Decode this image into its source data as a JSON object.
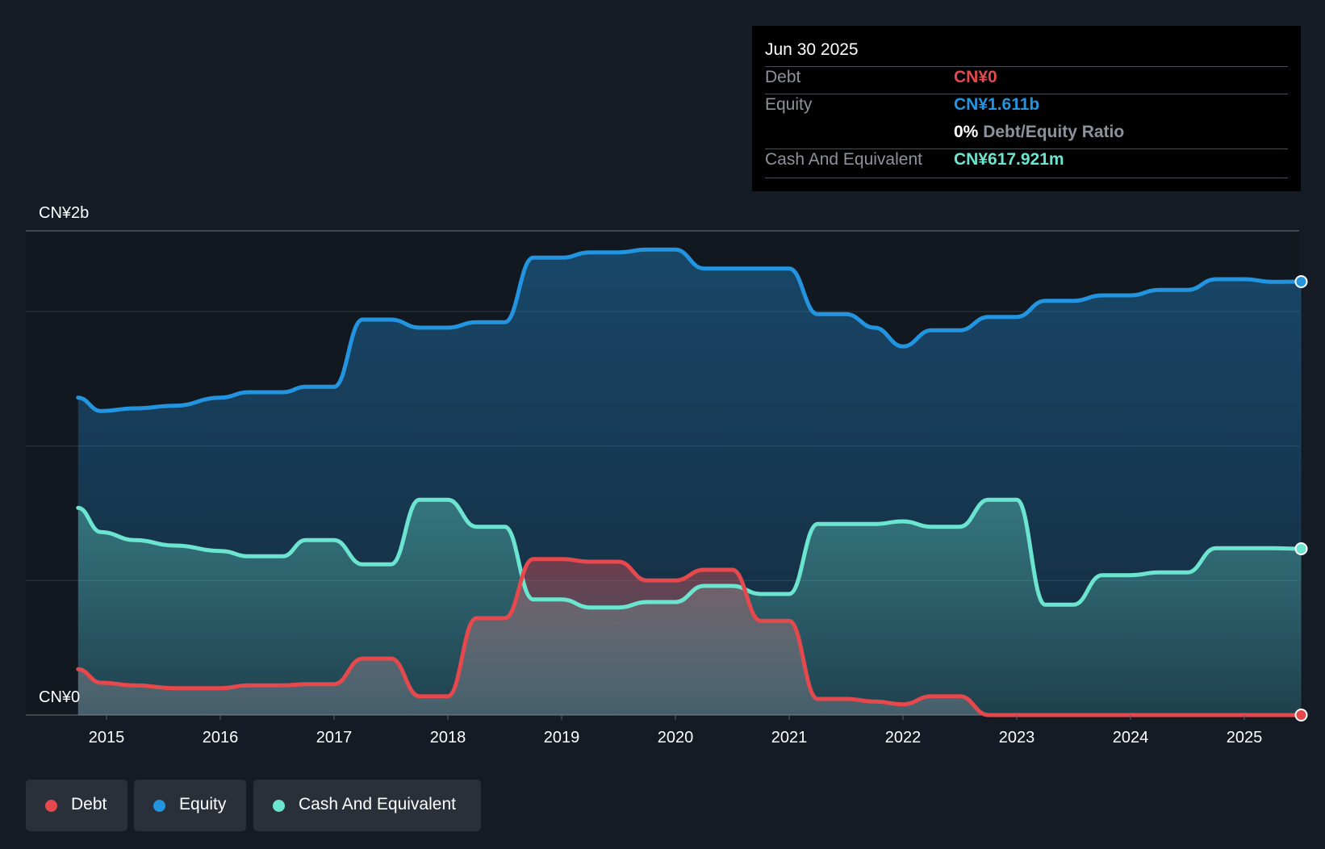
{
  "colors": {
    "background": "#151b24",
    "debt": "#e5484d",
    "equity": "#2394df",
    "cash": "#6ce5d0"
  },
  "tooltip": {
    "date": "Jun 30 2025",
    "debt_label": "Debt",
    "debt_value": "CN¥0",
    "equity_label": "Equity",
    "equity_value": "CN¥1.611b",
    "ratio_value": "0%",
    "ratio_label": "Debt/Equity Ratio",
    "cash_label": "Cash And Equivalent",
    "cash_value": "CN¥617.921m"
  },
  "legend": {
    "debt": "Debt",
    "equity": "Equity",
    "cash": "Cash And Equivalent"
  },
  "chart_data": {
    "type": "area",
    "y_unit": "CN¥ billions",
    "ylim": [
      0,
      1.8
    ],
    "y_tick_labels": [
      "CN¥0",
      "CN¥2b"
    ],
    "x_tick_labels": [
      "2015",
      "2016",
      "2017",
      "2018",
      "2019",
      "2020",
      "2021",
      "2022",
      "2023",
      "2024",
      "2025"
    ],
    "x_range": [
      2014.5,
      2025.5
    ],
    "grid": true,
    "legend_position": "bottom-left",
    "series": [
      {
        "name": "Equity",
        "color": "#2394df",
        "points": [
          [
            2014.75,
            1.18
          ],
          [
            2014.95,
            1.13
          ],
          [
            2015.25,
            1.14
          ],
          [
            2015.6,
            1.15
          ],
          [
            2016.0,
            1.18
          ],
          [
            2016.25,
            1.2
          ],
          [
            2016.55,
            1.2
          ],
          [
            2016.75,
            1.22
          ],
          [
            2017.0,
            1.22
          ],
          [
            2017.25,
            1.47
          ],
          [
            2017.5,
            1.47
          ],
          [
            2017.75,
            1.44
          ],
          [
            2018.0,
            1.44
          ],
          [
            2018.25,
            1.46
          ],
          [
            2018.5,
            1.46
          ],
          [
            2018.75,
            1.7
          ],
          [
            2019.0,
            1.7
          ],
          [
            2019.25,
            1.72
          ],
          [
            2019.5,
            1.72
          ],
          [
            2019.75,
            1.73
          ],
          [
            2020.0,
            1.73
          ],
          [
            2020.25,
            1.66
          ],
          [
            2020.5,
            1.66
          ],
          [
            2020.75,
            1.66
          ],
          [
            2021.0,
            1.66
          ],
          [
            2021.25,
            1.49
          ],
          [
            2021.5,
            1.49
          ],
          [
            2021.75,
            1.44
          ],
          [
            2022.0,
            1.37
          ],
          [
            2022.25,
            1.43
          ],
          [
            2022.5,
            1.43
          ],
          [
            2022.75,
            1.48
          ],
          [
            2023.0,
            1.48
          ],
          [
            2023.25,
            1.54
          ],
          [
            2023.5,
            1.54
          ],
          [
            2023.75,
            1.56
          ],
          [
            2024.0,
            1.56
          ],
          [
            2024.25,
            1.58
          ],
          [
            2024.5,
            1.58
          ],
          [
            2024.75,
            1.62
          ],
          [
            2025.0,
            1.62
          ],
          [
            2025.25,
            1.61
          ],
          [
            2025.5,
            1.611
          ]
        ]
      },
      {
        "name": "Cash And Equivalent",
        "color": "#6ce5d0",
        "points": [
          [
            2014.75,
            0.77
          ],
          [
            2014.95,
            0.68
          ],
          [
            2015.25,
            0.65
          ],
          [
            2015.6,
            0.63
          ],
          [
            2016.0,
            0.61
          ],
          [
            2016.25,
            0.59
          ],
          [
            2016.55,
            0.59
          ],
          [
            2016.75,
            0.65
          ],
          [
            2017.0,
            0.65
          ],
          [
            2017.25,
            0.56
          ],
          [
            2017.5,
            0.56
          ],
          [
            2017.75,
            0.8
          ],
          [
            2018.0,
            0.8
          ],
          [
            2018.25,
            0.7
          ],
          [
            2018.5,
            0.7
          ],
          [
            2018.75,
            0.43
          ],
          [
            2019.0,
            0.43
          ],
          [
            2019.25,
            0.4
          ],
          [
            2019.5,
            0.4
          ],
          [
            2019.75,
            0.42
          ],
          [
            2020.0,
            0.42
          ],
          [
            2020.25,
            0.48
          ],
          [
            2020.5,
            0.48
          ],
          [
            2020.75,
            0.45
          ],
          [
            2021.0,
            0.45
          ],
          [
            2021.25,
            0.71
          ],
          [
            2021.5,
            0.71
          ],
          [
            2021.75,
            0.71
          ],
          [
            2022.0,
            0.72
          ],
          [
            2022.25,
            0.7
          ],
          [
            2022.5,
            0.7
          ],
          [
            2022.75,
            0.8
          ],
          [
            2023.0,
            0.8
          ],
          [
            2023.25,
            0.41
          ],
          [
            2023.5,
            0.41
          ],
          [
            2023.75,
            0.52
          ],
          [
            2024.0,
            0.52
          ],
          [
            2024.25,
            0.53
          ],
          [
            2024.5,
            0.53
          ],
          [
            2024.75,
            0.62
          ],
          [
            2025.0,
            0.62
          ],
          [
            2025.25,
            0.62
          ],
          [
            2025.5,
            0.618
          ]
        ]
      },
      {
        "name": "Debt",
        "color": "#e5484d",
        "points": [
          [
            2014.75,
            0.17
          ],
          [
            2014.95,
            0.12
          ],
          [
            2015.25,
            0.11
          ],
          [
            2015.6,
            0.1
          ],
          [
            2016.0,
            0.1
          ],
          [
            2016.25,
            0.11
          ],
          [
            2016.55,
            0.11
          ],
          [
            2016.75,
            0.115
          ],
          [
            2017.0,
            0.115
          ],
          [
            2017.25,
            0.21
          ],
          [
            2017.5,
            0.21
          ],
          [
            2017.75,
            0.07
          ],
          [
            2018.0,
            0.07
          ],
          [
            2018.25,
            0.36
          ],
          [
            2018.5,
            0.36
          ],
          [
            2018.75,
            0.58
          ],
          [
            2019.0,
            0.58
          ],
          [
            2019.25,
            0.57
          ],
          [
            2019.5,
            0.57
          ],
          [
            2019.75,
            0.5
          ],
          [
            2020.0,
            0.5
          ],
          [
            2020.25,
            0.54
          ],
          [
            2020.5,
            0.54
          ],
          [
            2020.75,
            0.35
          ],
          [
            2021.0,
            0.35
          ],
          [
            2021.25,
            0.06
          ],
          [
            2021.5,
            0.06
          ],
          [
            2021.75,
            0.05
          ],
          [
            2022.0,
            0.04
          ],
          [
            2022.25,
            0.07
          ],
          [
            2022.5,
            0.07
          ],
          [
            2022.75,
            0.0
          ],
          [
            2023.0,
            0.0
          ],
          [
            2023.25,
            0.0
          ],
          [
            2023.5,
            0.0
          ],
          [
            2023.75,
            0.0
          ],
          [
            2024.0,
            0.0
          ],
          [
            2024.25,
            0.0
          ],
          [
            2024.5,
            0.0
          ],
          [
            2024.75,
            0.0
          ],
          [
            2025.0,
            0.0
          ],
          [
            2025.25,
            0.0
          ],
          [
            2025.5,
            0.0
          ]
        ]
      }
    ]
  }
}
